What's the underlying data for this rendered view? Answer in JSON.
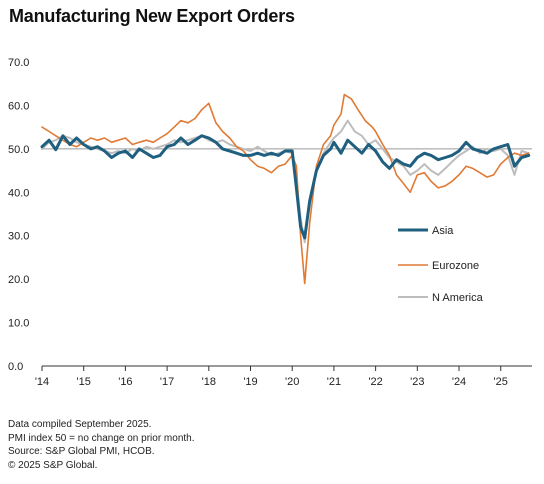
{
  "chart_data": {
    "type": "line",
    "title": "Manufacturing  New Export Orders",
    "ylim": [
      0,
      70
    ],
    "yticks": [
      "0.0",
      "10.0",
      "20.0",
      "30.0",
      "40.0",
      "50.0",
      "60.0",
      "70.0"
    ],
    "xlim": [
      2014,
      2025.75
    ],
    "xticks": [
      {
        "x": 2014,
        "label": "'14"
      },
      {
        "x": 2015,
        "label": "'15"
      },
      {
        "x": 2016,
        "label": "'16"
      },
      {
        "x": 2017,
        "label": "'17"
      },
      {
        "x": 2018,
        "label": "'18"
      },
      {
        "x": 2019,
        "label": "'19"
      },
      {
        "x": 2020,
        "label": "'20"
      },
      {
        "x": 2021,
        "label": "'21"
      },
      {
        "x": 2022,
        "label": "'22"
      },
      {
        "x": 2023,
        "label": "'23"
      },
      {
        "x": 2024,
        "label": "'24"
      },
      {
        "x": 2025,
        "label": "'25"
      }
    ],
    "reference_line": 50,
    "grid": false,
    "legend_position": "right",
    "series": [
      {
        "name": "Asia",
        "color": "#1f5f7f",
        "points": [
          [
            2014.0,
            50.5
          ],
          [
            2014.17,
            52.0
          ],
          [
            2014.33,
            49.8
          ],
          [
            2014.5,
            53.0
          ],
          [
            2014.67,
            51.0
          ],
          [
            2014.83,
            52.5
          ],
          [
            2015.0,
            51.0
          ],
          [
            2015.17,
            50.0
          ],
          [
            2015.33,
            50.5
          ],
          [
            2015.5,
            49.5
          ],
          [
            2015.67,
            48.0
          ],
          [
            2015.83,
            49.0
          ],
          [
            2016.0,
            49.5
          ],
          [
            2016.17,
            48.0
          ],
          [
            2016.33,
            50.0
          ],
          [
            2016.5,
            49.0
          ],
          [
            2016.67,
            48.0
          ],
          [
            2016.83,
            48.5
          ],
          [
            2017.0,
            50.5
          ],
          [
            2017.17,
            51.0
          ],
          [
            2017.33,
            52.5
          ],
          [
            2017.5,
            51.0
          ],
          [
            2017.67,
            52.0
          ],
          [
            2017.83,
            53.0
          ],
          [
            2018.0,
            52.5
          ],
          [
            2018.17,
            51.5
          ],
          [
            2018.33,
            50.0
          ],
          [
            2018.5,
            49.5
          ],
          [
            2018.67,
            49.0
          ],
          [
            2018.83,
            48.5
          ],
          [
            2019.0,
            48.5
          ],
          [
            2019.17,
            49.0
          ],
          [
            2019.33,
            48.5
          ],
          [
            2019.5,
            49.0
          ],
          [
            2019.67,
            48.5
          ],
          [
            2019.83,
            49.5
          ],
          [
            2020.0,
            49.5
          ],
          [
            2020.1,
            41.0
          ],
          [
            2020.2,
            32.0
          ],
          [
            2020.3,
            29.5
          ],
          [
            2020.42,
            38.0
          ],
          [
            2020.58,
            45.0
          ],
          [
            2020.75,
            48.5
          ],
          [
            2020.92,
            50.0
          ],
          [
            2021.0,
            51.5
          ],
          [
            2021.17,
            49.0
          ],
          [
            2021.33,
            52.0
          ],
          [
            2021.5,
            50.5
          ],
          [
            2021.67,
            49.0
          ],
          [
            2021.83,
            51.0
          ],
          [
            2022.0,
            49.5
          ],
          [
            2022.17,
            47.0
          ],
          [
            2022.33,
            45.5
          ],
          [
            2022.5,
            47.5
          ],
          [
            2022.67,
            46.5
          ],
          [
            2022.83,
            46.0
          ],
          [
            2023.0,
            48.0
          ],
          [
            2023.17,
            49.0
          ],
          [
            2023.33,
            48.5
          ],
          [
            2023.5,
            47.5
          ],
          [
            2023.67,
            48.0
          ],
          [
            2023.83,
            48.5
          ],
          [
            2024.0,
            49.5
          ],
          [
            2024.17,
            51.5
          ],
          [
            2024.33,
            50.0
          ],
          [
            2024.5,
            49.5
          ],
          [
            2024.67,
            49.0
          ],
          [
            2024.83,
            50.0
          ],
          [
            2025.0,
            50.5
          ],
          [
            2025.17,
            51.0
          ],
          [
            2025.33,
            46.0
          ],
          [
            2025.5,
            48.0
          ],
          [
            2025.67,
            48.5
          ]
        ]
      },
      {
        "name": "Eurozone",
        "color": "#e07a34",
        "points": [
          [
            2014.0,
            55.0
          ],
          [
            2014.17,
            54.0
          ],
          [
            2014.33,
            53.0
          ],
          [
            2014.5,
            52.0
          ],
          [
            2014.67,
            51.0
          ],
          [
            2014.83,
            50.5
          ],
          [
            2015.0,
            51.5
          ],
          [
            2015.17,
            52.5
          ],
          [
            2015.33,
            52.0
          ],
          [
            2015.5,
            52.5
          ],
          [
            2015.67,
            51.5
          ],
          [
            2015.83,
            52.0
          ],
          [
            2016.0,
            52.5
          ],
          [
            2016.17,
            51.0
          ],
          [
            2016.33,
            51.5
          ],
          [
            2016.5,
            52.0
          ],
          [
            2016.67,
            51.5
          ],
          [
            2016.83,
            52.5
          ],
          [
            2017.0,
            53.5
          ],
          [
            2017.17,
            55.0
          ],
          [
            2017.33,
            56.5
          ],
          [
            2017.5,
            56.0
          ],
          [
            2017.67,
            57.0
          ],
          [
            2017.83,
            59.0
          ],
          [
            2018.0,
            60.5
          ],
          [
            2018.17,
            56.0
          ],
          [
            2018.33,
            54.0
          ],
          [
            2018.5,
            52.5
          ],
          [
            2018.67,
            50.5
          ],
          [
            2018.83,
            49.5
          ],
          [
            2019.0,
            47.5
          ],
          [
            2019.17,
            46.0
          ],
          [
            2019.33,
            45.5
          ],
          [
            2019.5,
            44.5
          ],
          [
            2019.67,
            46.0
          ],
          [
            2019.83,
            46.5
          ],
          [
            2020.0,
            48.5
          ],
          [
            2020.1,
            46.0
          ],
          [
            2020.2,
            30.0
          ],
          [
            2020.3,
            19.0
          ],
          [
            2020.42,
            33.0
          ],
          [
            2020.58,
            46.0
          ],
          [
            2020.75,
            51.0
          ],
          [
            2020.92,
            53.0
          ],
          [
            2021.0,
            55.5
          ],
          [
            2021.17,
            58.0
          ],
          [
            2021.25,
            62.5
          ],
          [
            2021.42,
            61.5
          ],
          [
            2021.58,
            59.0
          ],
          [
            2021.75,
            56.5
          ],
          [
            2021.92,
            55.0
          ],
          [
            2022.0,
            54.0
          ],
          [
            2022.17,
            51.0
          ],
          [
            2022.33,
            48.5
          ],
          [
            2022.5,
            44.0
          ],
          [
            2022.67,
            42.0
          ],
          [
            2022.83,
            40.0
          ],
          [
            2023.0,
            44.0
          ],
          [
            2023.17,
            44.5
          ],
          [
            2023.33,
            42.5
          ],
          [
            2023.5,
            41.0
          ],
          [
            2023.67,
            41.5
          ],
          [
            2023.83,
            42.5
          ],
          [
            2024.0,
            44.0
          ],
          [
            2024.17,
            46.0
          ],
          [
            2024.33,
            45.5
          ],
          [
            2024.5,
            44.5
          ],
          [
            2024.67,
            43.5
          ],
          [
            2024.83,
            44.0
          ],
          [
            2025.0,
            46.5
          ],
          [
            2025.17,
            48.0
          ],
          [
            2025.33,
            49.0
          ],
          [
            2025.5,
            48.5
          ],
          [
            2025.67,
            49.0
          ]
        ]
      },
      {
        "name": "N America",
        "color": "#bdbdbd",
        "points": [
          [
            2014.0,
            50.0
          ],
          [
            2014.17,
            51.5
          ],
          [
            2014.33,
            52.0
          ],
          [
            2014.5,
            53.0
          ],
          [
            2014.67,
            52.5
          ],
          [
            2014.83,
            51.5
          ],
          [
            2015.0,
            51.0
          ],
          [
            2015.17,
            50.5
          ],
          [
            2015.33,
            50.0
          ],
          [
            2015.5,
            49.5
          ],
          [
            2015.67,
            49.0
          ],
          [
            2015.83,
            49.5
          ],
          [
            2016.0,
            49.0
          ],
          [
            2016.17,
            50.0
          ],
          [
            2016.33,
            49.5
          ],
          [
            2016.5,
            50.5
          ],
          [
            2016.67,
            50.0
          ],
          [
            2016.83,
            50.5
          ],
          [
            2017.0,
            51.0
          ],
          [
            2017.17,
            52.0
          ],
          [
            2017.33,
            51.5
          ],
          [
            2017.5,
            52.0
          ],
          [
            2017.67,
            52.5
          ],
          [
            2017.83,
            53.0
          ],
          [
            2018.0,
            52.0
          ],
          [
            2018.17,
            51.5
          ],
          [
            2018.33,
            52.0
          ],
          [
            2018.5,
            51.0
          ],
          [
            2018.67,
            50.5
          ],
          [
            2018.83,
            50.0
          ],
          [
            2019.0,
            49.5
          ],
          [
            2019.17,
            50.5
          ],
          [
            2019.33,
            49.5
          ],
          [
            2019.5,
            48.5
          ],
          [
            2019.67,
            49.0
          ],
          [
            2019.83,
            49.5
          ],
          [
            2020.0,
            49.0
          ],
          [
            2020.1,
            43.0
          ],
          [
            2020.2,
            34.0
          ],
          [
            2020.3,
            28.5
          ],
          [
            2020.42,
            38.0
          ],
          [
            2020.58,
            45.0
          ],
          [
            2020.75,
            49.0
          ],
          [
            2020.92,
            51.5
          ],
          [
            2021.0,
            52.5
          ],
          [
            2021.17,
            54.0
          ],
          [
            2021.33,
            56.5
          ],
          [
            2021.5,
            54.0
          ],
          [
            2021.67,
            53.0
          ],
          [
            2021.83,
            51.0
          ],
          [
            2022.0,
            52.0
          ],
          [
            2022.17,
            50.0
          ],
          [
            2022.33,
            48.0
          ],
          [
            2022.5,
            47.0
          ],
          [
            2022.67,
            46.0
          ],
          [
            2022.83,
            44.0
          ],
          [
            2023.0,
            45.0
          ],
          [
            2023.17,
            46.5
          ],
          [
            2023.33,
            45.0
          ],
          [
            2023.5,
            44.0
          ],
          [
            2023.67,
            45.5
          ],
          [
            2023.83,
            47.0
          ],
          [
            2024.0,
            48.5
          ],
          [
            2024.17,
            49.5
          ],
          [
            2024.33,
            50.5
          ],
          [
            2024.5,
            49.0
          ],
          [
            2024.67,
            50.0
          ],
          [
            2024.83,
            49.5
          ],
          [
            2025.0,
            50.0
          ],
          [
            2025.17,
            48.5
          ],
          [
            2025.33,
            44.0
          ],
          [
            2025.5,
            49.5
          ],
          [
            2025.67,
            49.0
          ]
        ]
      }
    ]
  },
  "footnotes": {
    "line1": "Data compiled September 2025.",
    "line2": "PMI index 50 = no change on prior month.",
    "line3": "Source: S&P Global PMI, HCOB.",
    "line4": "© 2025 S&P Global."
  }
}
